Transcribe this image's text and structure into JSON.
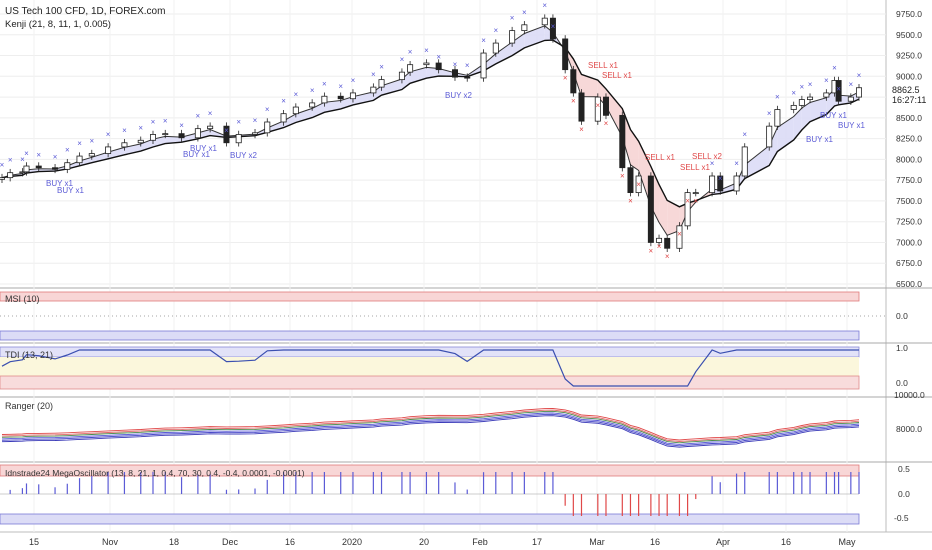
{
  "header": {
    "symbol": "US Tech 100 CFD, 1D, FOREX.com",
    "indicator": "Kenji (21, 8, 11, 1, 0.005)"
  },
  "price_axis": {
    "ticks": [
      "9750.0",
      "9500.0",
      "9250.0",
      "9000.0",
      "8750.0",
      "8500.0",
      "8250.0",
      "8000.0",
      "7750.0",
      "7500.0",
      "7250.0",
      "7000.0",
      "6750.0",
      "6500.0"
    ],
    "last_price": "8862.5",
    "countdown": "16:27:11"
  },
  "panels": {
    "msi": {
      "title": "MSI (10)",
      "ticks": [
        "0.0"
      ]
    },
    "tdi": {
      "title": "TDI (13, 21)",
      "ticks": [
        "1.0",
        "0.0"
      ]
    },
    "ranger": {
      "title": "Ranger (20)",
      "ticks": [
        "10000.0",
        "8000.0"
      ]
    },
    "mega": {
      "title": "Idnstrade24 MegaOscillator (13, 8, 21, 1, 0.4, 70, 30, 0.4, -0.4, 0.0001, -0.0001)",
      "ticks": [
        "0.5",
        "0.0",
        "-0.5"
      ]
    }
  },
  "time_axis": [
    "15",
    "Nov",
    "18",
    "Dec",
    "16",
    "2020",
    "20",
    "Feb",
    "17",
    "Mar",
    "16",
    "Apr",
    "16",
    "May"
  ],
  "signals": [
    {
      "text": "BUY x1",
      "kind": "buy"
    },
    {
      "text": "BUY x1",
      "kind": "buy"
    },
    {
      "text": "BUY x1",
      "kind": "buy"
    },
    {
      "text": "BUY x1",
      "kind": "buy"
    },
    {
      "text": "BUY x2",
      "kind": "buy"
    },
    {
      "text": "BUY x2",
      "kind": "buy"
    },
    {
      "text": "BUY x1",
      "kind": "buy"
    },
    {
      "text": "BUY x1",
      "kind": "buy"
    },
    {
      "text": "BUY x1",
      "kind": "buy"
    },
    {
      "text": "SELL x1",
      "kind": "sell"
    },
    {
      "text": "SELL x1",
      "kind": "sell"
    },
    {
      "text": "SELL x1",
      "kind": "sell"
    },
    {
      "text": "SELL x2",
      "kind": "sell"
    },
    {
      "text": "SELL x1",
      "kind": "sell"
    }
  ],
  "colors": {
    "buy": "#5b5bd6",
    "sell": "#e04848",
    "band_bull": "#dcdcf6",
    "band_bear": "#f6d4d4",
    "grid": "#eeeeee",
    "axis_text": "#333333"
  },
  "chart_data": {
    "type": "candlestick",
    "symbol": "US Tech 100 CFD",
    "interval": "1D",
    "x_range": [
      "2019-10-09",
      "2020-05-06"
    ],
    "ylim": [
      6500,
      9750
    ],
    "y_unit": "index points",
    "close_series": [
      {
        "date": "2019-10-09",
        "close": 7780
      },
      {
        "date": "2019-10-11",
        "close": 7840
      },
      {
        "date": "2019-10-14",
        "close": 7850
      },
      {
        "date": "2019-10-15",
        "close": 7920
      },
      {
        "date": "2019-10-18",
        "close": 7900
      },
      {
        "date": "2019-10-22",
        "close": 7880
      },
      {
        "date": "2019-10-25",
        "close": 7960
      },
      {
        "date": "2019-10-28",
        "close": 8040
      },
      {
        "date": "2019-10-31",
        "close": 8070
      },
      {
        "date": "2019-11-04",
        "close": 8150
      },
      {
        "date": "2019-11-08",
        "close": 8200
      },
      {
        "date": "2019-11-12",
        "close": 8230
      },
      {
        "date": "2019-11-15",
        "close": 8300
      },
      {
        "date": "2019-11-18",
        "close": 8310
      },
      {
        "date": "2019-11-22",
        "close": 8260
      },
      {
        "date": "2019-11-26",
        "close": 8370
      },
      {
        "date": "2019-11-29",
        "close": 8400
      },
      {
        "date": "2019-12-03",
        "close": 8200
      },
      {
        "date": "2019-12-06",
        "close": 8300
      },
      {
        "date": "2019-12-10",
        "close": 8320
      },
      {
        "date": "2019-12-13",
        "close": 8450
      },
      {
        "date": "2019-12-17",
        "close": 8550
      },
      {
        "date": "2019-12-20",
        "close": 8630
      },
      {
        "date": "2019-12-24",
        "close": 8680
      },
      {
        "date": "2019-12-27",
        "close": 8760
      },
      {
        "date": "2019-12-31",
        "close": 8730
      },
      {
        "date": "2020-01-03",
        "close": 8800
      },
      {
        "date": "2020-01-08",
        "close": 8870
      },
      {
        "date": "2020-01-10",
        "close": 8960
      },
      {
        "date": "2020-01-15",
        "close": 9050
      },
      {
        "date": "2020-01-17",
        "close": 9140
      },
      {
        "date": "2020-01-21",
        "close": 9160
      },
      {
        "date": "2020-01-24",
        "close": 9080
      },
      {
        "date": "2020-01-28",
        "close": 8990
      },
      {
        "date": "2020-01-31",
        "close": 8980
      },
      {
        "date": "2020-02-04",
        "close": 9280
      },
      {
        "date": "2020-02-07",
        "close": 9400
      },
      {
        "date": "2020-02-11",
        "close": 9550
      },
      {
        "date": "2020-02-14",
        "close": 9620
      },
      {
        "date": "2020-02-19",
        "close": 9700
      },
      {
        "date": "2020-02-21",
        "close": 9450
      },
      {
        "date": "2020-02-24",
        "close": 9080
      },
      {
        "date": "2020-02-26",
        "close": 8800
      },
      {
        "date": "2020-02-28",
        "close": 8460
      },
      {
        "date": "2020-03-03",
        "close": 8750
      },
      {
        "date": "2020-03-05",
        "close": 8530
      },
      {
        "date": "2020-03-09",
        "close": 7900
      },
      {
        "date": "2020-03-11",
        "close": 7600
      },
      {
        "date": "2020-03-13",
        "close": 7800
      },
      {
        "date": "2020-03-16",
        "close": 7000
      },
      {
        "date": "2020-03-18",
        "close": 7050
      },
      {
        "date": "2020-03-20",
        "close": 6930
      },
      {
        "date": "2020-03-23",
        "close": 7200
      },
      {
        "date": "2020-03-25",
        "close": 7600
      },
      {
        "date": "2020-03-27",
        "close": 7600
      },
      {
        "date": "2020-03-31",
        "close": 7800
      },
      {
        "date": "2020-04-02",
        "close": 7620
      },
      {
        "date": "2020-04-06",
        "close": 7800
      },
      {
        "date": "2020-04-08",
        "close": 8150
      },
      {
        "date": "2020-04-14",
        "close": 8400
      },
      {
        "date": "2020-04-16",
        "close": 8600
      },
      {
        "date": "2020-04-20",
        "close": 8650
      },
      {
        "date": "2020-04-22",
        "close": 8720
      },
      {
        "date": "2020-04-24",
        "close": 8750
      },
      {
        "date": "2020-04-28",
        "close": 8800
      },
      {
        "date": "2020-04-30",
        "close": 8950
      },
      {
        "date": "2020-05-01",
        "close": 8700
      },
      {
        "date": "2020-05-04",
        "close": 8750
      },
      {
        "date": "2020-05-06",
        "close": 8862.5
      }
    ],
    "last_close": 8862.5,
    "indicators": [
      "MSI (10)",
      "TDI (13, 21)",
      "Ranger (20)",
      "Idnstrade24 MegaOscillator"
    ]
  }
}
